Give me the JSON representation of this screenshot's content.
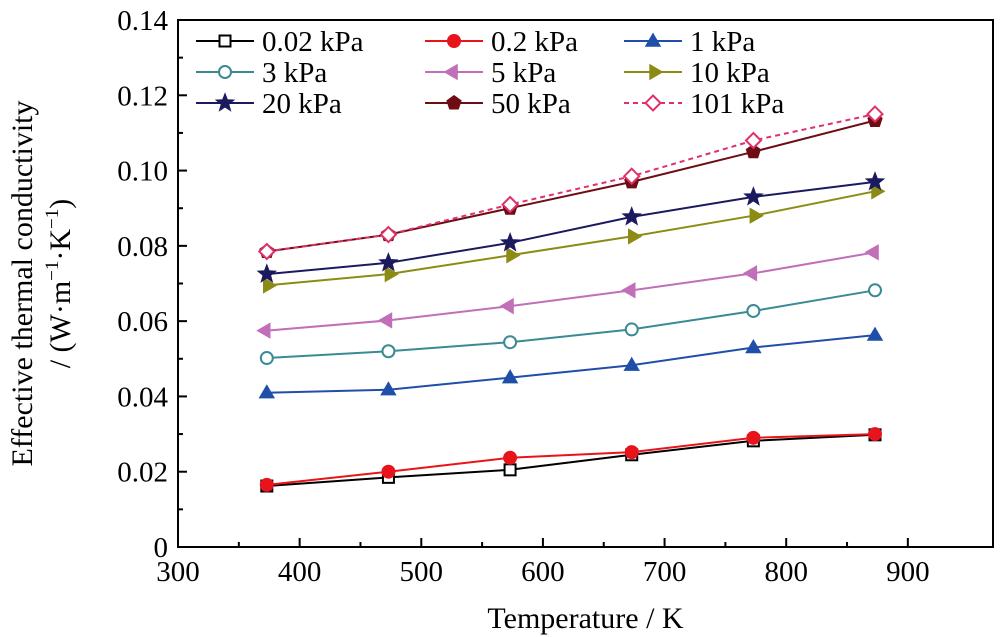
{
  "chart_data": {
    "type": "line",
    "title": "",
    "xlabel": "Temperature / K",
    "ylabel_line1": "Effective thermal conductivity",
    "ylabel_line2_prefix": "/ (W·m",
    "ylabel_sup1": "−1",
    "ylabel_mid": "·K",
    "ylabel_sup2": "−1",
    "ylabel_suffix": ")",
    "xlim": [
      300,
      970
    ],
    "ylim": [
      0,
      0.14
    ],
    "xticks": [
      300,
      400,
      500,
      600,
      700,
      800,
      900
    ],
    "yticks": [
      0,
      0.02,
      0.04,
      0.06,
      0.08,
      0.1,
      0.12,
      0.14
    ],
    "ytick_labels": [
      "0",
      "0.02",
      "0.04",
      "0.06",
      "0.08",
      "0.10",
      "0.12",
      "0.14"
    ],
    "legend_position": "top-left",
    "x": [
      373,
      473,
      573,
      673,
      773,
      873
    ],
    "series": [
      {
        "name": "0.02 kPa",
        "color": "#000000",
        "marker": "square",
        "filled": false,
        "dashed": false,
        "values": [
          0.0162,
          0.0185,
          0.0205,
          0.0245,
          0.0282,
          0.0298
        ]
      },
      {
        "name": "0.2 kPa",
        "color": "#e8141c",
        "marker": "circle",
        "filled": true,
        "dashed": false,
        "values": [
          0.0165,
          0.02,
          0.0237,
          0.0252,
          0.029,
          0.03
        ]
      },
      {
        "name": "1 kPa",
        "color": "#1f4fa8",
        "marker": "triangle-up",
        "filled": true,
        "dashed": false,
        "values": [
          0.041,
          0.0418,
          0.045,
          0.0483,
          0.053,
          0.0563
        ]
      },
      {
        "name": "3 kPa",
        "color": "#3a8a94",
        "marker": "circle",
        "filled": false,
        "dashed": false,
        "values": [
          0.0502,
          0.052,
          0.0544,
          0.0578,
          0.0627,
          0.0682
        ]
      },
      {
        "name": "5 kPa",
        "color": "#c06fb8",
        "marker": "triangle-left",
        "filled": true,
        "dashed": false,
        "values": [
          0.0575,
          0.0602,
          0.064,
          0.0682,
          0.0727,
          0.0783
        ]
      },
      {
        "name": "10 kPa",
        "color": "#8c8c14",
        "marker": "triangle-right",
        "filled": true,
        "dashed": false,
        "values": [
          0.0695,
          0.0725,
          0.0775,
          0.0825,
          0.088,
          0.0945
        ]
      },
      {
        "name": "20 kPa",
        "color": "#1c1a5e",
        "marker": "star",
        "filled": true,
        "dashed": false,
        "values": [
          0.0725,
          0.0755,
          0.0808,
          0.0877,
          0.093,
          0.097
        ]
      },
      {
        "name": "50 kPa",
        "color": "#6e0d14",
        "marker": "pentagon",
        "filled": true,
        "dashed": false,
        "values": [
          0.0785,
          0.083,
          0.09,
          0.097,
          0.105,
          0.1133
        ]
      },
      {
        "name": "101 kPa",
        "color": "#e0306c",
        "marker": "diamond",
        "filled": false,
        "dashed": true,
        "values": [
          0.0785,
          0.083,
          0.091,
          0.0985,
          0.108,
          0.115
        ]
      }
    ]
  }
}
